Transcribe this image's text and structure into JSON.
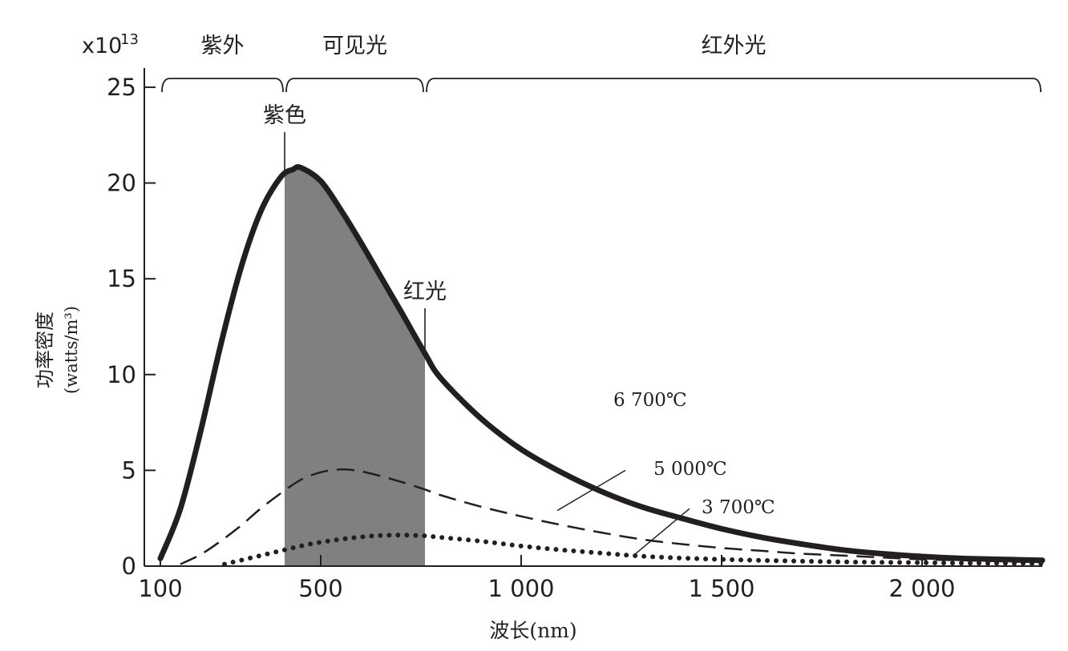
{
  "chart_data": {
    "type": "line",
    "x_unit_label": "波长(nm)",
    "y_label_line1": "功率密度",
    "y_label_line2": "(watts/m³)",
    "y_scale_prefix": "x10",
    "y_scale_exponent": "13",
    "xlim": [
      60,
      2300
    ],
    "ylim": [
      0,
      26
    ],
    "x_ticks": [
      {
        "value": 100,
        "label": "100"
      },
      {
        "value": 500,
        "label": "500"
      },
      {
        "value": 1000,
        "label": "1 000"
      },
      {
        "value": 1500,
        "label": "1 500"
      },
      {
        "value": 2000,
        "label": "2 000"
      }
    ],
    "y_ticks": [
      {
        "value": 0,
        "label": "0"
      },
      {
        "value": 5,
        "label": "5"
      },
      {
        "value": 10,
        "label": "10"
      },
      {
        "value": 15,
        "label": "15"
      },
      {
        "value": 20,
        "label": "20"
      },
      {
        "value": 25,
        "label": "25"
      }
    ],
    "regions": [
      {
        "label": "紫外",
        "from": 100,
        "to": 410
      },
      {
        "label": "可见光",
        "from": 410,
        "to": 760
      },
      {
        "label": "红外光",
        "from": 760,
        "to": 2300
      }
    ],
    "visible_band": {
      "from": 410,
      "to": 760
    },
    "markers": [
      {
        "label": "紫色",
        "x": 410
      },
      {
        "label": "红光",
        "x": 760
      }
    ],
    "series": [
      {
        "name": "6 700℃",
        "style": "solid-thick",
        "label_at": [
          1230,
          8.7
        ],
        "points": [
          [
            100,
            0.4
          ],
          [
            150,
            3
          ],
          [
            200,
            7
          ],
          [
            250,
            11.5
          ],
          [
            300,
            15.5
          ],
          [
            350,
            18.5
          ],
          [
            400,
            20.3
          ],
          [
            430,
            20.7
          ],
          [
            450,
            20.8
          ],
          [
            500,
            20.1
          ],
          [
            550,
            18.6
          ],
          [
            600,
            16.9
          ],
          [
            650,
            15.1
          ],
          [
            700,
            13.3
          ],
          [
            760,
            11.1
          ],
          [
            800,
            9.8
          ],
          [
            900,
            7.7
          ],
          [
            1000,
            6.1
          ],
          [
            1100,
            4.9
          ],
          [
            1200,
            3.9
          ],
          [
            1300,
            3.1
          ],
          [
            1400,
            2.5
          ],
          [
            1500,
            1.95
          ],
          [
            1600,
            1.5
          ],
          [
            1700,
            1.15
          ],
          [
            1800,
            0.85
          ],
          [
            1900,
            0.65
          ],
          [
            2000,
            0.5
          ],
          [
            2100,
            0.4
          ],
          [
            2200,
            0.35
          ],
          [
            2300,
            0.3
          ]
        ]
      },
      {
        "name": "5 000℃",
        "style": "dashed",
        "label_at": [
          1330,
          5.1
        ],
        "leader": [
          [
            1090,
            2.9
          ],
          [
            1260,
            5
          ]
        ],
        "points": [
          [
            150,
            0.1
          ],
          [
            200,
            0.6
          ],
          [
            250,
            1.3
          ],
          [
            300,
            2.1
          ],
          [
            350,
            3.0
          ],
          [
            400,
            3.8
          ],
          [
            450,
            4.5
          ],
          [
            500,
            4.9
          ],
          [
            550,
            5.05
          ],
          [
            600,
            4.95
          ],
          [
            650,
            4.7
          ],
          [
            700,
            4.4
          ],
          [
            760,
            4.0
          ],
          [
            800,
            3.7
          ],
          [
            900,
            3.1
          ],
          [
            1000,
            2.6
          ],
          [
            1100,
            2.15
          ],
          [
            1200,
            1.75
          ],
          [
            1300,
            1.4
          ],
          [
            1400,
            1.15
          ],
          [
            1500,
            0.95
          ],
          [
            1600,
            0.8
          ],
          [
            1700,
            0.65
          ],
          [
            1800,
            0.55
          ],
          [
            1900,
            0.45
          ],
          [
            2000,
            0.35
          ],
          [
            2100,
            0.3
          ],
          [
            2200,
            0.25
          ],
          [
            2300,
            0.2
          ]
        ]
      },
      {
        "name": "3 700℃",
        "style": "dotted",
        "label_at": [
          1450,
          3.1
        ],
        "leader": [
          [
            1280,
            0.55
          ],
          [
            1420,
            3
          ]
        ],
        "points": [
          [
            260,
            0.1
          ],
          [
            300,
            0.3
          ],
          [
            350,
            0.55
          ],
          [
            400,
            0.8
          ],
          [
            450,
            1.05
          ],
          [
            500,
            1.25
          ],
          [
            550,
            1.4
          ],
          [
            600,
            1.52
          ],
          [
            650,
            1.6
          ],
          [
            700,
            1.62
          ],
          [
            760,
            1.58
          ],
          [
            800,
            1.5
          ],
          [
            900,
            1.3
          ],
          [
            1000,
            1.05
          ],
          [
            1100,
            0.85
          ],
          [
            1200,
            0.68
          ],
          [
            1300,
            0.52
          ],
          [
            1400,
            0.42
          ],
          [
            1500,
            0.35
          ],
          [
            1600,
            0.3
          ],
          [
            1700,
            0.26
          ],
          [
            1800,
            0.22
          ],
          [
            1900,
            0.2
          ],
          [
            2000,
            0.18
          ],
          [
            2100,
            0.16
          ],
          [
            2200,
            0.15
          ],
          [
            2300,
            0.14
          ]
        ]
      }
    ],
    "colors": {
      "band_fill": "#808080",
      "ink": "#231f20"
    }
  }
}
